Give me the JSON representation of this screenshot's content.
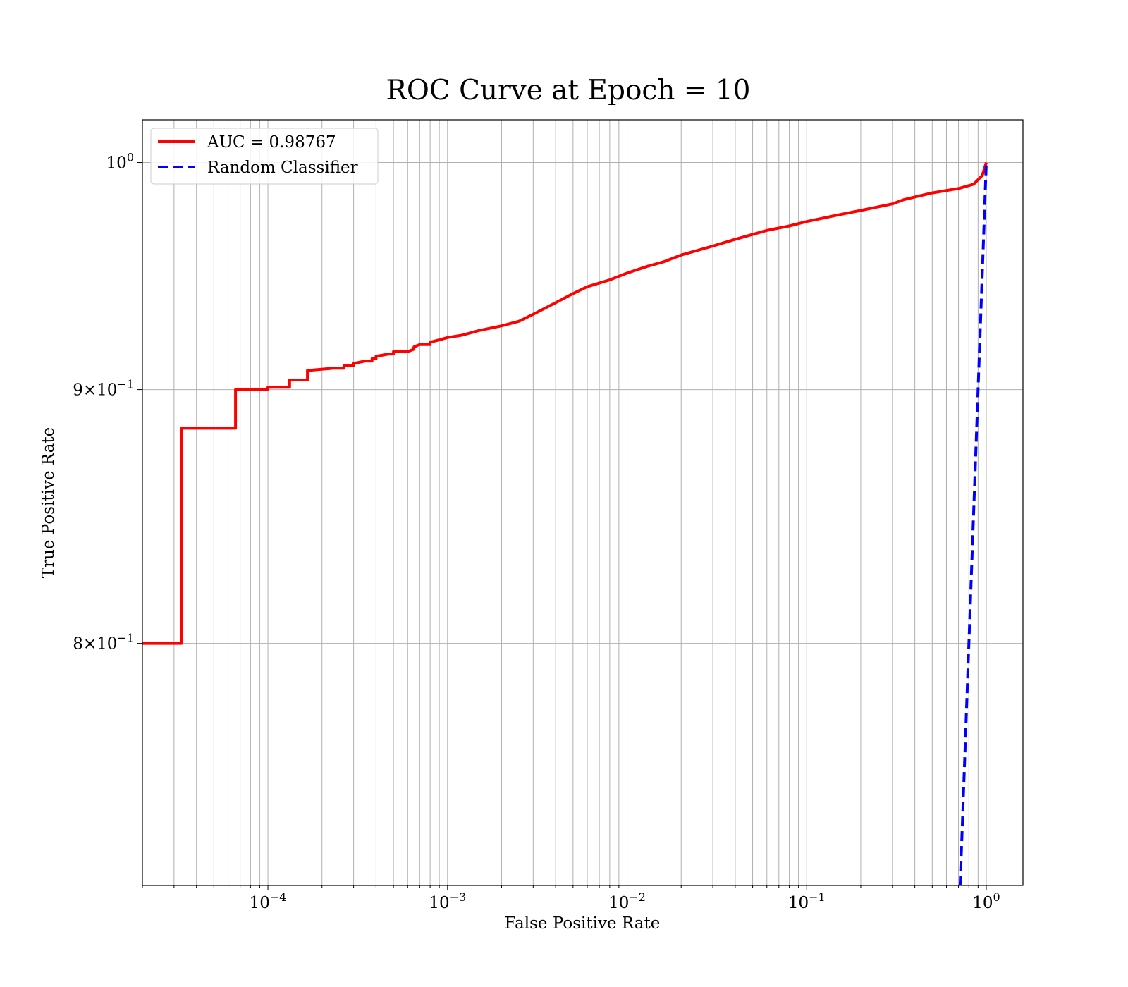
{
  "chart_data": {
    "type": "line",
    "title": "ROC Curve at Epoch = 10",
    "xlabel": "False Positive Rate",
    "ylabel": "True Positive Rate",
    "xscale": "log",
    "yscale": "log",
    "xlim": [
      2e-05,
      1.6
    ],
    "ylim": [
      0.715,
      1.02
    ],
    "x_ticks": [
      {
        "value": 0.0001,
        "base": "10",
        "exp": "−4"
      },
      {
        "value": 0.001,
        "base": "10",
        "exp": "−3"
      },
      {
        "value": 0.01,
        "base": "10",
        "exp": "−2"
      },
      {
        "value": 0.1,
        "base": "10",
        "exp": "−1"
      },
      {
        "value": 1,
        "base": "10",
        "exp": "0"
      }
    ],
    "y_ticks": [
      {
        "value": 0.8,
        "mant": "8",
        "base": "×10",
        "exp": "−1"
      },
      {
        "value": 0.9,
        "mant": "9",
        "base": "×10",
        "exp": "−1"
      },
      {
        "value": 1.0,
        "mant": "",
        "base": "10",
        "exp": "0"
      }
    ],
    "grid": true,
    "legend_position": "top-left",
    "series": [
      {
        "name": "AUC = 0.98767",
        "color": "#ff0000",
        "style": "solid",
        "x": [
          2e-05,
          3.3e-05,
          3.3e-05,
          6.6e-05,
          6.6e-05,
          0.0001,
          0.0001,
          0.000132,
          0.000132,
          0.000166,
          0.000166,
          0.000232,
          0.000265,
          0.000265,
          0.0003,
          0.0003,
          0.00035,
          0.00038,
          0.00038,
          0.0004,
          0.0004,
          0.00047,
          0.0005,
          0.0005,
          0.0006,
          0.00065,
          0.00065,
          0.0007,
          0.0008,
          0.0008,
          0.0009,
          0.001,
          0.0012,
          0.0015,
          0.002,
          0.0025,
          0.003,
          0.004,
          0.005,
          0.006,
          0.008,
          0.01,
          0.013,
          0.016,
          0.02,
          0.03,
          0.04,
          0.06,
          0.08,
          0.1,
          0.15,
          0.2,
          0.3,
          0.35,
          0.5,
          0.7,
          0.85,
          0.95,
          1.0
        ],
        "y": [
          0.8,
          0.8,
          0.884,
          0.884,
          0.9,
          0.9,
          0.901,
          0.901,
          0.904,
          0.904,
          0.908,
          0.909,
          0.909,
          0.91,
          0.91,
          0.911,
          0.912,
          0.912,
          0.913,
          0.913,
          0.914,
          0.915,
          0.915,
          0.916,
          0.916,
          0.917,
          0.918,
          0.919,
          0.919,
          0.92,
          0.921,
          0.922,
          0.923,
          0.925,
          0.927,
          0.929,
          0.932,
          0.937,
          0.941,
          0.944,
          0.947,
          0.95,
          0.953,
          0.955,
          0.958,
          0.962,
          0.965,
          0.969,
          0.971,
          0.973,
          0.976,
          0.978,
          0.981,
          0.983,
          0.986,
          0.988,
          0.99,
          0.994,
          1.0
        ]
      },
      {
        "name": "Random Classifier",
        "color": "#0000ff",
        "style": "dashed",
        "x": [
          0.715,
          1.0
        ],
        "y": [
          0.715,
          1.0
        ]
      }
    ]
  }
}
